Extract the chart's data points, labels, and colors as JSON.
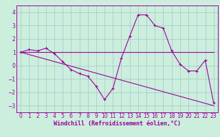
{
  "xlabel": "Windchill (Refroidissement éolien,°C)",
  "bg_color": "#cceedd",
  "grid_color": "#aacccc",
  "line_color": "#990099",
  "xlim": [
    -0.5,
    23.5
  ],
  "ylim": [
    -3.5,
    4.5
  ],
  "yticks": [
    -3,
    -2,
    -1,
    0,
    1,
    2,
    3,
    4
  ],
  "xticks": [
    0,
    1,
    2,
    3,
    4,
    5,
    6,
    7,
    8,
    9,
    10,
    11,
    12,
    13,
    14,
    15,
    16,
    17,
    18,
    19,
    20,
    21,
    22,
    23
  ],
  "curve1_x": [
    0,
    1,
    2,
    3,
    4,
    5,
    6,
    7,
    8,
    9,
    10,
    11,
    12,
    13,
    14,
    15,
    16,
    17,
    18,
    19,
    20,
    21,
    22,
    23
  ],
  "curve1_y": [
    1.0,
    1.2,
    1.1,
    1.3,
    0.9,
    0.3,
    -0.3,
    -0.6,
    -0.8,
    -1.55,
    -2.55,
    -1.7,
    0.55,
    2.2,
    3.8,
    3.8,
    3.0,
    2.8,
    1.1,
    0.1,
    -0.4,
    -0.4,
    0.4,
    -2.8
  ],
  "curve2_x": [
    0,
    23
  ],
  "curve2_y": [
    1.0,
    1.0
  ],
  "curve3_x": [
    0,
    23
  ],
  "curve3_y": [
    1.0,
    -3.0
  ],
  "tick_fontsize": 5.5,
  "xlabel_fontsize": 6.0,
  "lw": 0.8,
  "marker_size": 3.0
}
